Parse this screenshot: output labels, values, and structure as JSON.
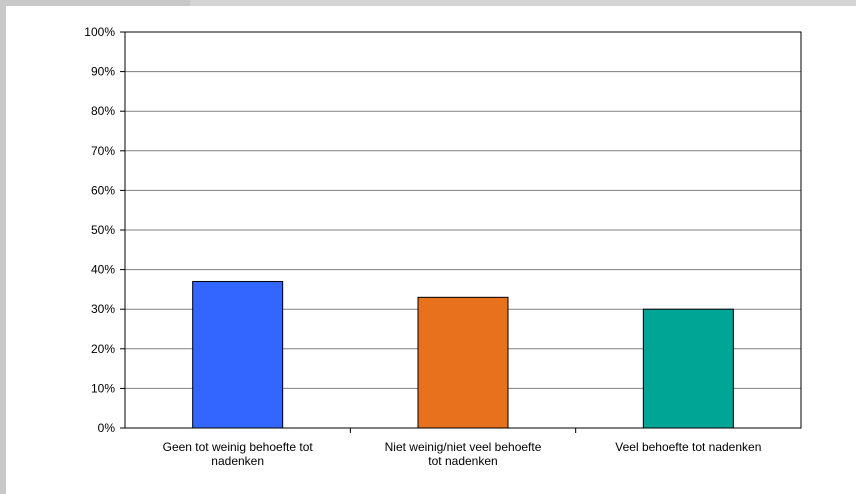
{
  "chart_data": {
    "type": "bar",
    "categories": [
      [
        "Geen tot weinig behoefte tot",
        "nadenken"
      ],
      [
        "Niet weinig/niet veel behoefte",
        "tot nadenken"
      ],
      [
        "Veel behoefte tot nadenken"
      ]
    ],
    "values": [
      37,
      33,
      30
    ],
    "bar_colors": [
      "#3366ff",
      "#e8711d",
      "#00a596"
    ],
    "yticks": [
      "0%",
      "10%",
      "20%",
      "30%",
      "40%",
      "50%",
      "60%",
      "70%",
      "80%",
      "90%",
      "100%"
    ],
    "ylim": [
      0,
      100
    ],
    "grid": true,
    "title": "",
    "xlabel": "",
    "ylabel": ""
  }
}
